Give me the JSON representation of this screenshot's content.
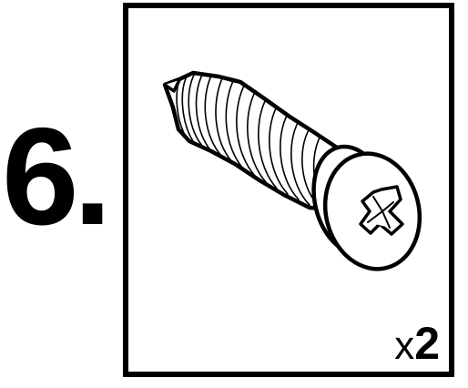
{
  "step": {
    "number_label": "6."
  },
  "part": {
    "icon": "pan-head-phillips-screw-icon",
    "quantity_prefix": "x",
    "quantity_count": "2"
  }
}
